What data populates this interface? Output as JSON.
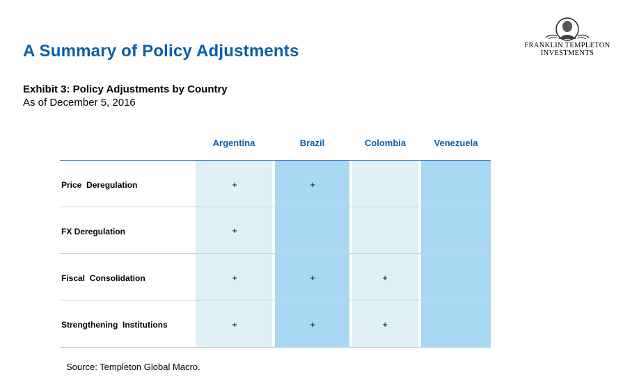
{
  "page": {
    "title": "A Summary of Policy Adjustments",
    "exhibit_title": "Exhibit 3: Policy Adjustments by Country",
    "exhibit_date": "As of December 5, 2016",
    "source": "Source: Templeton Global Macro."
  },
  "logo": {
    "line1": "FRANKLIN TEMPLETON",
    "line2": "INVESTMENTS",
    "emblem_icon": "franklin-portrait-icon"
  },
  "colors": {
    "heading_blue": "#0b5ea8",
    "light_column": "#dff0f7",
    "medium_column": "#a8d8f2"
  },
  "table": {
    "columns": [
      "Argentina",
      "Brazil",
      "Colombia",
      "Venezuela"
    ],
    "rows": [
      {
        "label": "Price  Deregulation",
        "marks": [
          "+",
          "+",
          "",
          ""
        ]
      },
      {
        "label": "FX Deregulation",
        "marks": [
          "+",
          "",
          "",
          ""
        ]
      },
      {
        "label": "Fiscal  Consolidation",
        "marks": [
          "+",
          "+",
          "+",
          ""
        ]
      },
      {
        "label": "Strengthening  Institutions",
        "marks": [
          "+",
          "+",
          "+",
          ""
        ]
      }
    ]
  }
}
